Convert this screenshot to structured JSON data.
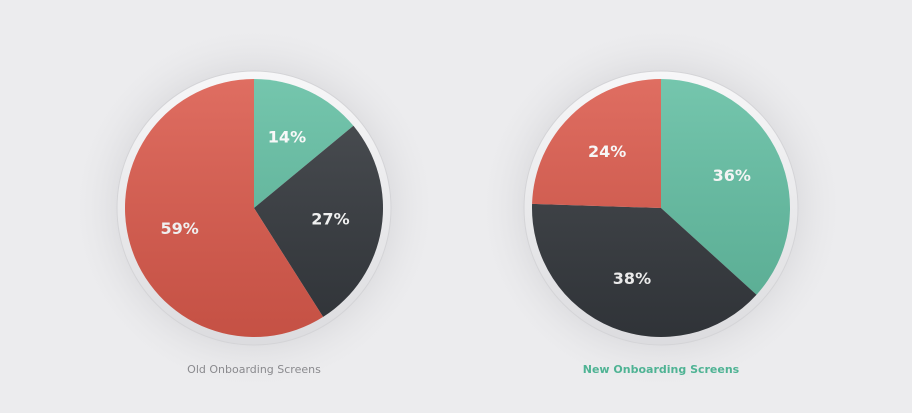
{
  "chart_data": [
    {
      "type": "pie",
      "title": "Old Onboarding Screens",
      "values": [
        14,
        27,
        59
      ],
      "value_labels": [
        "14%",
        "27%",
        "59%"
      ],
      "colors": [
        "#62bea2",
        "#35393e",
        "#db5a4c"
      ]
    },
    {
      "type": "pie",
      "title": "New Onboarding Screens",
      "values": [
        36,
        38,
        24
      ],
      "value_labels": [
        "36%",
        "38%",
        "24%"
      ],
      "colors": [
        "#62bea2",
        "#35393e",
        "#db5a4c"
      ]
    }
  ]
}
